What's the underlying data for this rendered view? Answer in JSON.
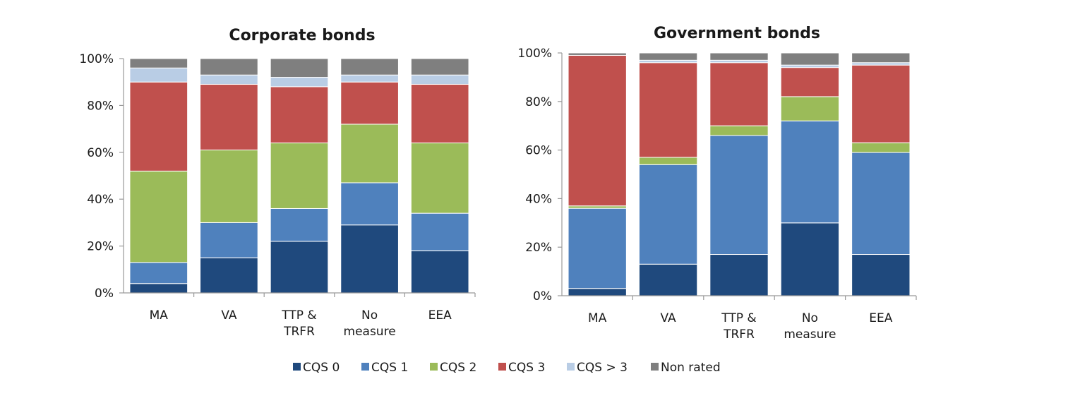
{
  "chart_data": [
    {
      "type": "bar",
      "stacked": true,
      "title": "Corporate bonds",
      "categories": [
        [
          "MA"
        ],
        [
          "VA"
        ],
        [
          "TTP &",
          "TRFR"
        ],
        [
          "No",
          "measure"
        ],
        [
          "EEA"
        ]
      ],
      "ylim": [
        0,
        100
      ],
      "yticks": [
        "0%",
        "20%",
        "40%",
        "60%",
        "80%",
        "100%"
      ],
      "grid": false,
      "series": [
        {
          "name": "CQS 0",
          "values": [
            4,
            15,
            22,
            29,
            18
          ]
        },
        {
          "name": "CQS 1",
          "values": [
            9,
            15,
            14,
            18,
            16
          ]
        },
        {
          "name": "CQS 2",
          "values": [
            39,
            31,
            28,
            25,
            30
          ]
        },
        {
          "name": "CQS 3",
          "values": [
            38,
            28,
            24,
            18,
            25
          ]
        },
        {
          "name": "CQS > 3",
          "values": [
            6,
            4,
            4,
            3,
            4
          ]
        },
        {
          "name": "Non rated",
          "values": [
            4,
            7,
            8,
            7,
            7
          ]
        }
      ]
    },
    {
      "type": "bar",
      "stacked": true,
      "title": "Government bonds",
      "categories": [
        [
          "MA"
        ],
        [
          "VA"
        ],
        [
          "TTP &",
          "TRFR"
        ],
        [
          "No",
          "measure"
        ],
        [
          "EEA"
        ]
      ],
      "ylim": [
        0,
        100
      ],
      "yticks": [
        "0%",
        "20%",
        "40%",
        "60%",
        "80%",
        "100%"
      ],
      "grid": false,
      "series": [
        {
          "name": "CQS 0",
          "values": [
            3,
            13,
            17,
            30,
            17
          ]
        },
        {
          "name": "CQS 1",
          "values": [
            33,
            41,
            49,
            42,
            42
          ]
        },
        {
          "name": "CQS 2",
          "values": [
            1,
            3,
            4,
            10,
            4
          ]
        },
        {
          "name": "CQS 3",
          "values": [
            62,
            39,
            26,
            12,
            32
          ]
        },
        {
          "name": "CQS > 3",
          "values": [
            0,
            1,
            1,
            1,
            1
          ]
        },
        {
          "name": "Non rated",
          "values": [
            1,
            3,
            3,
            5,
            4
          ]
        }
      ]
    }
  ],
  "legend": {
    "placement": "bottom",
    "items": [
      {
        "label": "CQS 0",
        "color": "#1F497D"
      },
      {
        "label": "CQS 1",
        "color": "#4F81BD"
      },
      {
        "label": "CQS 2",
        "color": "#9BBB59"
      },
      {
        "label": "CQS 3",
        "color": "#C0504D"
      },
      {
        "label": "CQS > 3",
        "color": "#B9CDE5"
      },
      {
        "label": "Non rated",
        "color": "#7F7F7F"
      }
    ]
  }
}
